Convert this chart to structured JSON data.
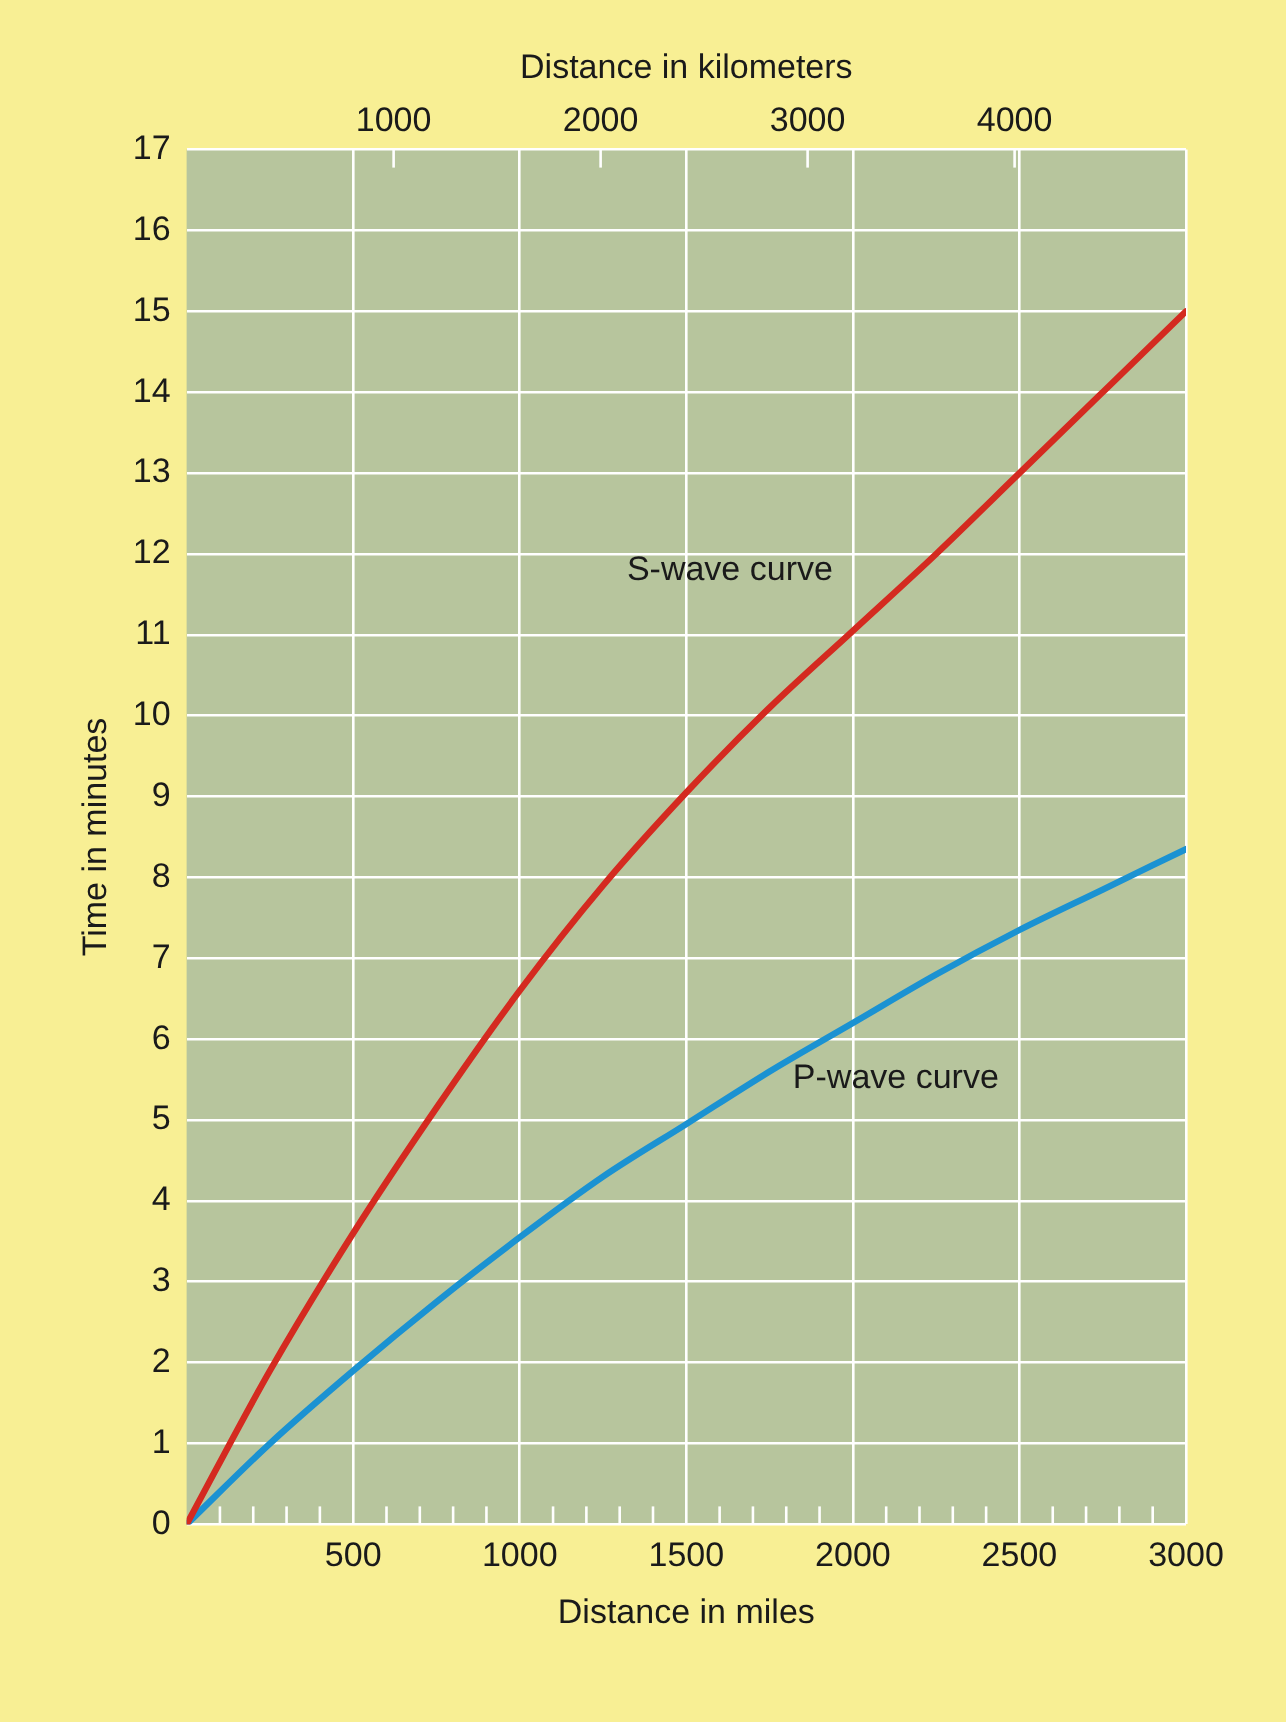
{
  "chart_data": {
    "type": "line",
    "xlabel": "Distance in miles",
    "ylabel": "Time in minutes",
    "x2label": "Distance in kilometers",
    "xlim": [
      0,
      3000
    ],
    "xticks": [
      {
        "value": 0,
        "label": null
      },
      {
        "value": 100,
        "label": null
      },
      {
        "value": 200,
        "label": null
      },
      {
        "value": 300,
        "label": null
      },
      {
        "value": 400,
        "label": null
      },
      500,
      {
        "value": 600,
        "label": null
      },
      {
        "value": 700,
        "label": null
      },
      {
        "value": 800,
        "label": null
      },
      {
        "value": 900,
        "label": null
      },
      1000,
      {
        "value": 1100,
        "label": null
      },
      {
        "value": 1200,
        "label": null
      },
      {
        "value": 1300,
        "label": null
      },
      {
        "value": 1400,
        "label": null
      },
      1500,
      {
        "value": 1600,
        "label": null
      },
      {
        "value": 1700,
        "label": null
      },
      {
        "value": 1800,
        "label": null
      },
      {
        "value": 1900,
        "label": null
      },
      2000,
      {
        "value": 2100,
        "label": null
      },
      {
        "value": 2200,
        "label": null
      },
      {
        "value": 2300,
        "label": null
      },
      {
        "value": 2400,
        "label": null
      },
      2500,
      {
        "value": 2600,
        "label": null
      },
      {
        "value": 2700,
        "label": null
      },
      {
        "value": 2800,
        "label": null
      },
      {
        "value": 2900,
        "label": null
      },
      3000
    ],
    "x2lim": [
      0,
      4828
    ],
    "x2ticks": [
      1000,
      2000,
      3000,
      4000
    ],
    "ylim": [
      0,
      17
    ],
    "yticks": [
      0,
      1,
      2,
      3,
      4,
      5,
      6,
      7,
      8,
      9,
      10,
      11,
      12,
      13,
      14,
      15,
      16,
      17
    ],
    "grid": true,
    "legend": false,
    "marker": "none",
    "x": [
      0,
      250,
      500,
      750,
      1000,
      1250,
      1500,
      1750,
      2000,
      2250,
      2500,
      2750,
      3000
    ],
    "series": [
      {
        "name": "S-wave curve",
        "color": "#d42a20",
        "values": [
          0,
          1.9,
          3.6,
          5.15,
          6.6,
          7.9,
          9.05,
          10.1,
          11.05,
          12.0,
          13.0,
          14.0,
          15.0
        ]
      },
      {
        "name": "P-wave curve",
        "color": "#1b92d2",
        "values": [
          0,
          1.0,
          1.9,
          2.75,
          3.55,
          4.3,
          4.95,
          5.6,
          6.2,
          6.8,
          7.35,
          7.85,
          8.35
        ]
      }
    ]
  }
}
